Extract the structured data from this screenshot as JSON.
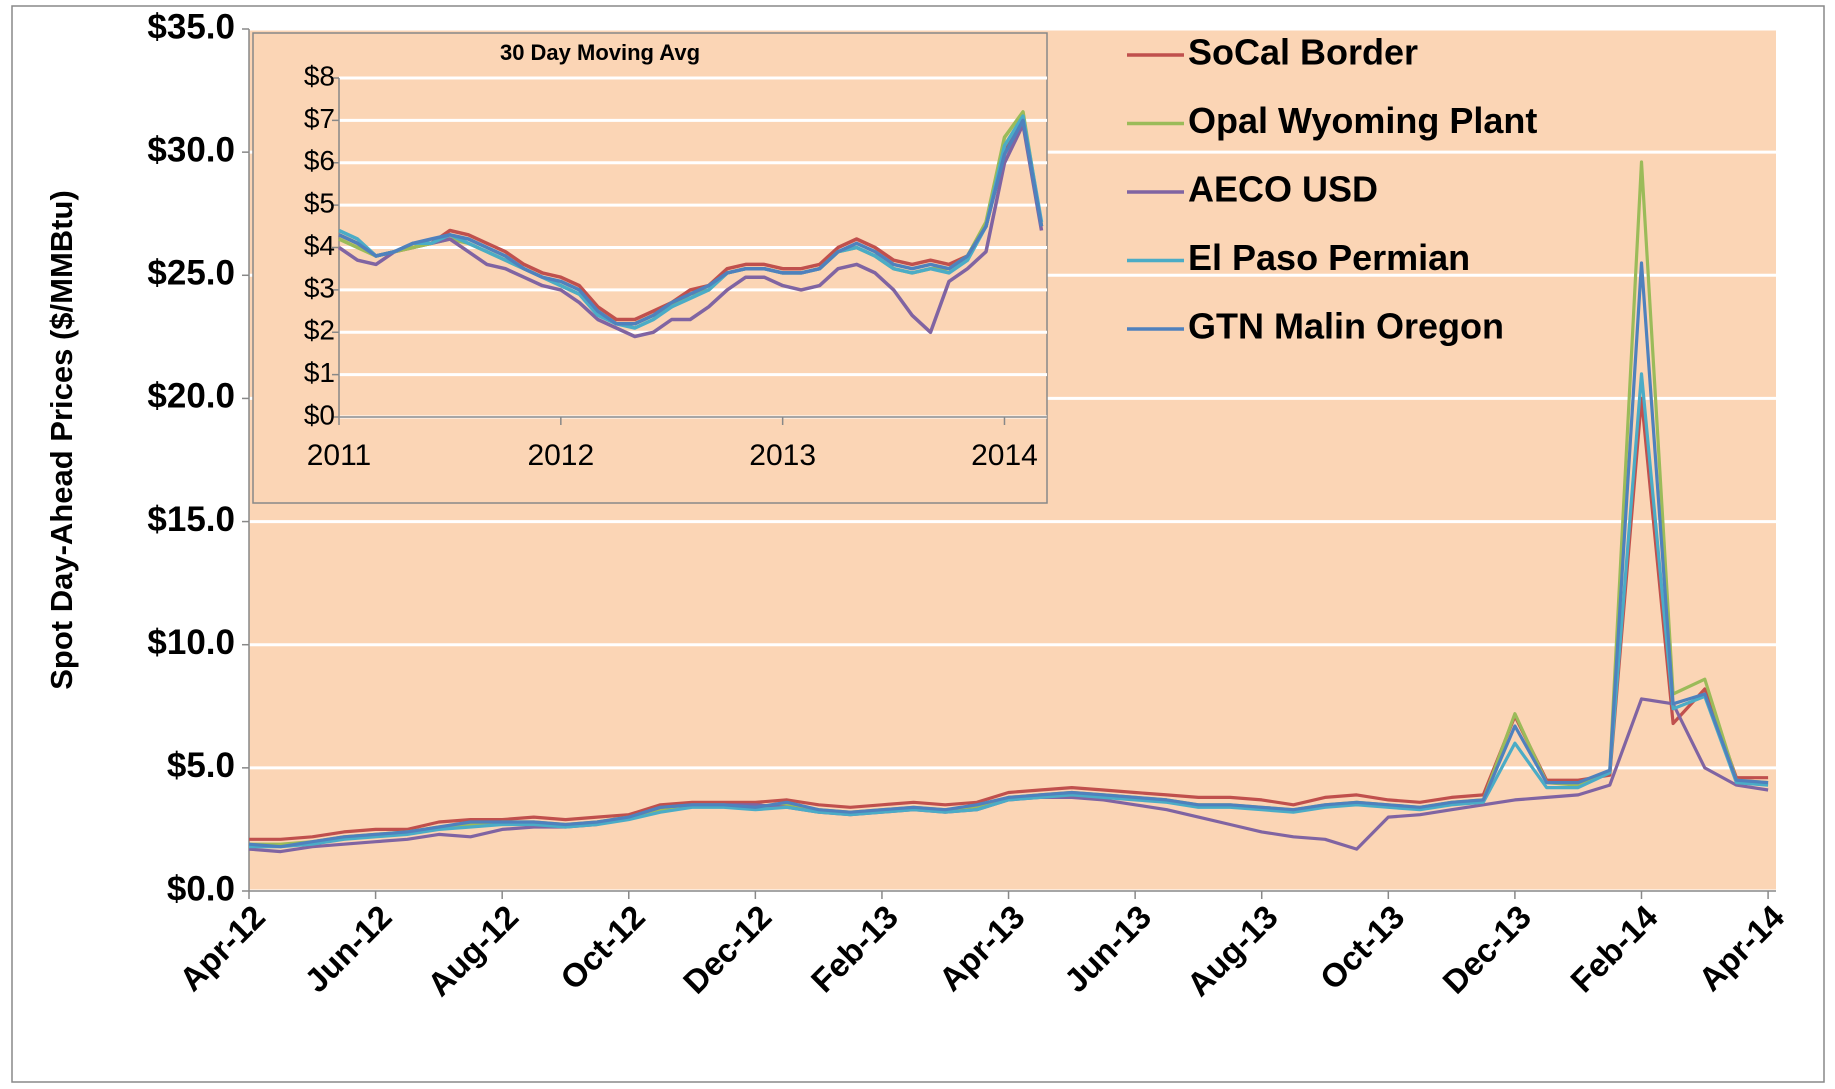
{
  "chart_data": [
    {
      "type": "line",
      "y_label": "Spot Day-Ahead Prices ($/MMBtu)",
      "categories": [
        "Apr-12",
        null,
        null,
        null,
        "Jun-12",
        null,
        null,
        null,
        "Aug-12",
        null,
        null,
        null,
        "Oct-12",
        null,
        null,
        null,
        "Dec-12",
        null,
        null,
        null,
        "Feb-13",
        null,
        null,
        null,
        "Apr-13",
        null,
        null,
        null,
        "Jun-13",
        null,
        null,
        null,
        "Aug-13",
        null,
        null,
        null,
        "Oct-13",
        null,
        null,
        null,
        "Dec-13",
        null,
        null,
        null,
        "Feb-14",
        null,
        null,
        null,
        "Apr-14"
      ],
      "series": [
        {
          "name": "SoCal Border",
          "color": "#c0504d",
          "values": [
            2.1,
            2.1,
            2.2,
            2.4,
            2.5,
            2.5,
            2.8,
            2.9,
            2.9,
            3.0,
            2.9,
            3.0,
            3.1,
            3.5,
            3.6,
            3.6,
            3.6,
            3.7,
            3.5,
            3.4,
            3.5,
            3.6,
            3.5,
            3.6,
            4.0,
            4.1,
            4.2,
            4.1,
            4.0,
            3.9,
            3.8,
            3.8,
            3.7,
            3.5,
            3.8,
            3.9,
            3.7,
            3.6,
            3.8,
            3.9,
            7.1,
            4.5,
            4.5,
            4.7,
            20.0,
            6.8,
            8.2,
            4.6,
            4.6
          ]
        },
        {
          "name": "Opal Wyoming Plant",
          "color": "#9bbb59",
          "values": [
            1.9,
            1.9,
            2.0,
            2.2,
            2.3,
            2.4,
            2.6,
            2.7,
            2.8,
            2.8,
            2.7,
            2.8,
            3.0,
            3.3,
            3.5,
            3.5,
            3.4,
            3.5,
            3.3,
            3.2,
            3.3,
            3.4,
            3.3,
            3.4,
            3.8,
            3.9,
            4.0,
            3.9,
            3.8,
            3.7,
            3.5,
            3.5,
            3.4,
            3.3,
            3.5,
            3.6,
            3.5,
            3.4,
            3.6,
            3.7,
            7.2,
            4.4,
            4.3,
            4.9,
            29.6,
            8.0,
            8.6,
            4.5,
            4.4
          ]
        },
        {
          "name": "AECO USD",
          "color": "#8064a2",
          "values": [
            1.7,
            1.6,
            1.8,
            1.9,
            2.0,
            2.1,
            2.3,
            2.2,
            2.5,
            2.6,
            2.6,
            2.7,
            3.0,
            3.4,
            3.5,
            3.5,
            3.5,
            3.4,
            3.2,
            3.1,
            3.2,
            3.3,
            3.2,
            3.3,
            3.7,
            3.8,
            3.8,
            3.7,
            3.5,
            3.3,
            3.0,
            2.7,
            2.4,
            2.2,
            2.1,
            1.7,
            3.0,
            3.1,
            3.3,
            3.5,
            3.7,
            3.8,
            3.9,
            4.3,
            7.8,
            7.6,
            5.0,
            4.3,
            4.1
          ]
        },
        {
          "name": "El Paso Permian",
          "color": "#4bacc6",
          "values": [
            1.8,
            1.8,
            1.9,
            2.1,
            2.2,
            2.3,
            2.5,
            2.6,
            2.7,
            2.7,
            2.6,
            2.7,
            2.9,
            3.2,
            3.4,
            3.4,
            3.3,
            3.4,
            3.2,
            3.1,
            3.2,
            3.3,
            3.2,
            3.3,
            3.7,
            3.8,
            3.9,
            3.8,
            3.7,
            3.6,
            3.4,
            3.4,
            3.3,
            3.2,
            3.4,
            3.5,
            3.4,
            3.3,
            3.5,
            3.6,
            6.0,
            4.2,
            4.2,
            4.8,
            21.0,
            7.4,
            7.9,
            4.4,
            4.3
          ]
        },
        {
          "name": "GTN Malin Oregon",
          "color": "#4f81bd",
          "values": [
            1.9,
            1.8,
            2.0,
            2.2,
            2.3,
            2.4,
            2.6,
            2.8,
            2.8,
            2.8,
            2.7,
            2.8,
            3.0,
            3.4,
            3.5,
            3.5,
            3.4,
            3.6,
            3.3,
            3.2,
            3.3,
            3.4,
            3.3,
            3.5,
            3.8,
            3.9,
            4.0,
            3.9,
            3.8,
            3.7,
            3.5,
            3.5,
            3.4,
            3.3,
            3.5,
            3.6,
            3.5,
            3.4,
            3.6,
            3.7,
            6.7,
            4.4,
            4.4,
            4.9,
            25.5,
            7.6,
            8.0,
            4.5,
            4.4
          ]
        }
      ],
      "ylim": [
        0,
        35
      ],
      "yticks": [
        {
          "value": 0,
          "label": "$0.0"
        },
        {
          "value": 5,
          "label": "$5.0"
        },
        {
          "value": 10,
          "label": "$10.0"
        },
        {
          "value": 15,
          "label": "$15.0"
        },
        {
          "value": 20,
          "label": "$20.0"
        },
        {
          "value": 25,
          "label": "$25.0"
        },
        {
          "value": 30,
          "label": "$30.0"
        },
        {
          "value": 35,
          "label": "$35.0"
        }
      ],
      "grid": true,
      "legend": "top-right",
      "plot_background": "#fbd5b5"
    },
    {
      "type": "line",
      "title": "30 Day Moving Avg",
      "categories": [
        "2011",
        null,
        null,
        null,
        null,
        null,
        null,
        null,
        null,
        null,
        null,
        null,
        "2012",
        null,
        null,
        null,
        null,
        null,
        null,
        null,
        null,
        null,
        null,
        null,
        "2013",
        null,
        null,
        null,
        null,
        null,
        null,
        null,
        null,
        null,
        null,
        null,
        "2014",
        null,
        null
      ],
      "series": [
        {
          "color": "#c0504d",
          "values": [
            4.3,
            4.1,
            3.8,
            3.9,
            4.0,
            4.1,
            4.4,
            4.3,
            4.1,
            3.9,
            3.6,
            3.4,
            3.3,
            3.1,
            2.6,
            2.3,
            2.3,
            2.5,
            2.7,
            3.0,
            3.1,
            3.5,
            3.6,
            3.6,
            3.5,
            3.5,
            3.6,
            4.0,
            4.2,
            4.0,
            3.7,
            3.6,
            3.7,
            3.6,
            3.8,
            4.5,
            6.3,
            7.1,
            4.5
          ]
        },
        {
          "color": "#9bbb59",
          "values": [
            4.2,
            4.0,
            3.8,
            3.9,
            4.0,
            4.1,
            4.2,
            4.1,
            3.9,
            3.7,
            3.5,
            3.3,
            3.1,
            2.9,
            2.5,
            2.2,
            2.2,
            2.4,
            2.6,
            2.9,
            3.0,
            3.4,
            3.5,
            3.5,
            3.4,
            3.4,
            3.5,
            3.9,
            4.0,
            3.8,
            3.5,
            3.4,
            3.5,
            3.5,
            3.8,
            4.6,
            6.6,
            7.2,
            4.5
          ]
        },
        {
          "color": "#8064a2",
          "values": [
            4.0,
            3.7,
            3.6,
            3.9,
            4.1,
            4.1,
            4.2,
            3.9,
            3.6,
            3.5,
            3.3,
            3.1,
            3.0,
            2.7,
            2.3,
            2.1,
            1.9,
            2.0,
            2.3,
            2.3,
            2.6,
            3.0,
            3.3,
            3.3,
            3.1,
            3.0,
            3.1,
            3.5,
            3.6,
            3.4,
            3.0,
            2.4,
            2.0,
            3.2,
            3.5,
            3.9,
            6.0,
            6.9,
            4.4
          ]
        },
        {
          "color": "#4bacc6",
          "values": [
            4.4,
            4.2,
            3.8,
            3.9,
            4.1,
            4.1,
            4.3,
            4.1,
            3.9,
            3.7,
            3.5,
            3.3,
            3.1,
            2.9,
            2.4,
            2.2,
            2.1,
            2.3,
            2.6,
            2.8,
            3.0,
            3.4,
            3.5,
            3.5,
            3.4,
            3.4,
            3.5,
            3.9,
            4.0,
            3.8,
            3.5,
            3.4,
            3.5,
            3.4,
            3.7,
            4.5,
            6.4,
            7.1,
            4.6
          ]
        },
        {
          "color": "#4f81bd",
          "values": [
            4.3,
            4.1,
            3.8,
            3.9,
            4.1,
            4.2,
            4.3,
            4.2,
            4.0,
            3.8,
            3.5,
            3.3,
            3.2,
            3.0,
            2.5,
            2.2,
            2.2,
            2.4,
            2.7,
            2.9,
            3.1,
            3.4,
            3.5,
            3.5,
            3.4,
            3.4,
            3.5,
            3.9,
            4.1,
            3.9,
            3.6,
            3.5,
            3.6,
            3.5,
            3.8,
            4.5,
            6.2,
            7.0,
            4.5
          ]
        }
      ],
      "ylim": [
        0,
        8
      ],
      "yticks": [
        {
          "value": 0,
          "label": "$0"
        },
        {
          "value": 1,
          "label": "$1"
        },
        {
          "value": 2,
          "label": "$2"
        },
        {
          "value": 3,
          "label": "$3"
        },
        {
          "value": 4,
          "label": "$4"
        },
        {
          "value": 5,
          "label": "$5"
        },
        {
          "value": 6,
          "label": "$6"
        },
        {
          "value": 7,
          "label": "$7"
        },
        {
          "value": 8,
          "label": "$8"
        }
      ],
      "grid": true,
      "plot_background": "#fbd5b5"
    }
  ]
}
